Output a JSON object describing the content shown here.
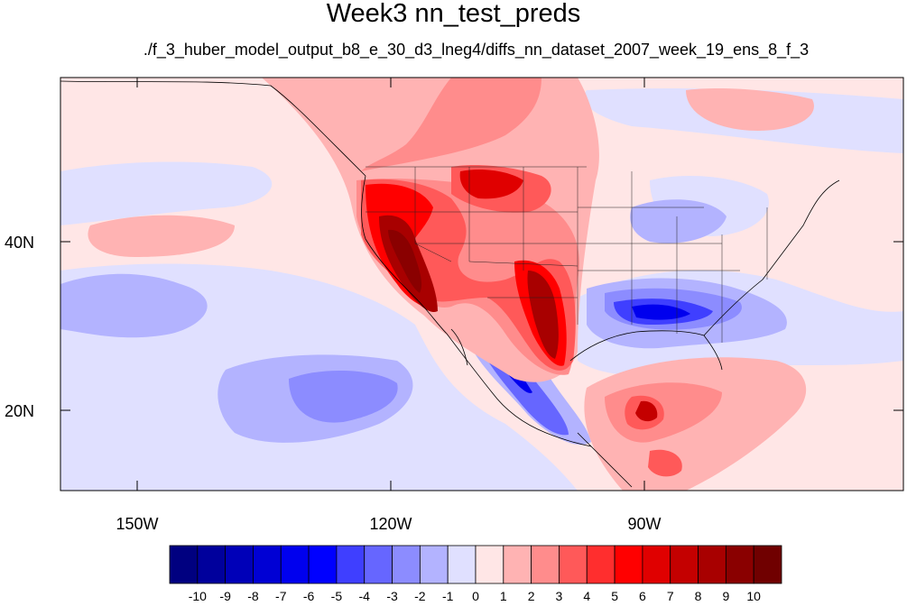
{
  "title": "Week3 nn_test_preds",
  "subtitle": "./f_3_huber_model_output_b8_e_30_d3_lneg4/diffs_nn_dataset_2007_week_19_ens_8_f_3",
  "axes": {
    "lon_labels": [
      "150W",
      "120W",
      "90W"
    ],
    "lat_labels": [
      "40N",
      "20N"
    ]
  },
  "colorbar": {
    "tick_labels": [
      "-10",
      "-9",
      "-8",
      "-7",
      "-6",
      "-5",
      "-4",
      "-3",
      "-2",
      "-1",
      "0",
      "1",
      "2",
      "3",
      "4",
      "5",
      "6",
      "7",
      "8",
      "9",
      "10"
    ],
    "colors": [
      "#000080",
      "#00009c",
      "#0000b8",
      "#0000d4",
      "#0000ee",
      "#0000ff",
      "#3f3fff",
      "#6666ff",
      "#8c8cff",
      "#b3b3ff",
      "#e0e0ff",
      "#ffe6e6",
      "#ffb3b3",
      "#ff8c8c",
      "#ff5959",
      "#ff2e2e",
      "#ff0000",
      "#e00000",
      "#c40000",
      "#a80000",
      "#8a0000",
      "#700000"
    ]
  },
  "colors": {
    "ocean_base": "#ffe6e6",
    "negative_light": "#e0e0ff",
    "negative_mid": "#8c8cff",
    "negative_strong": "#0000ee",
    "positive_light": "#ffb3b3",
    "positive_mid": "#ff5959",
    "positive_strong": "#e00000",
    "positive_max": "#8a0000"
  }
}
